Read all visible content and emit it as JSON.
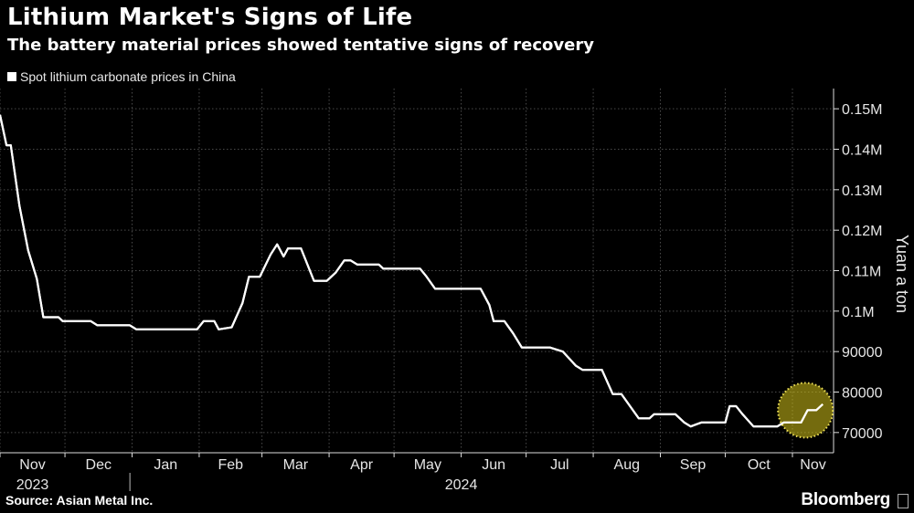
{
  "title": "Lithium Market's Signs of Life",
  "subtitle": "The battery material prices showed tentative signs of recovery",
  "source": "Source: Asian Metal Inc.",
  "brand": "Bloomberg",
  "colors": {
    "background": "#000000",
    "line": "#ffffff",
    "grid": "#4a4a4a",
    "highlight": "#d4c21a"
  },
  "chart_data": {
    "type": "line",
    "legend": "Spot lithium carbonate prices in China",
    "ylabel": "Yuan a ton",
    "ylim": [
      65000,
      155000
    ],
    "y_ticks": [
      {
        "value": 70000,
        "label": "70000"
      },
      {
        "value": 80000,
        "label": "80000"
      },
      {
        "value": 90000,
        "label": "90000"
      },
      {
        "value": 100000,
        "label": "0.1M"
      },
      {
        "value": 110000,
        "label": "0.11M"
      },
      {
        "value": 120000,
        "label": "0.12M"
      },
      {
        "value": 130000,
        "label": "0.13M"
      },
      {
        "value": 140000,
        "label": "0.14M"
      },
      {
        "value": 150000,
        "label": "0.15M"
      }
    ],
    "xlim": [
      "2023-11-01",
      "2024-11-20"
    ],
    "x_ticks": [
      {
        "date": "2023-11-01",
        "label": "Nov"
      },
      {
        "date": "2023-12-01",
        "label": "Dec"
      },
      {
        "date": "2024-01-01",
        "label": "Jan"
      },
      {
        "date": "2024-02-01",
        "label": "Feb"
      },
      {
        "date": "2024-03-01",
        "label": "Mar"
      },
      {
        "date": "2024-04-01",
        "label": "Apr"
      },
      {
        "date": "2024-05-01",
        "label": "May"
      },
      {
        "date": "2024-06-01",
        "label": "Jun"
      },
      {
        "date": "2024-07-01",
        "label": "Jul"
      },
      {
        "date": "2024-08-01",
        "label": "Aug"
      },
      {
        "date": "2024-09-01",
        "label": "Sep"
      },
      {
        "date": "2024-10-01",
        "label": "Oct"
      },
      {
        "date": "2024-11-01",
        "label": "Nov"
      }
    ],
    "year_labels": [
      {
        "date": "2023-11-16",
        "label": "2023"
      },
      {
        "date": "2024-06-01",
        "label": "2024"
      }
    ],
    "year_divider_date": "2023-12-31",
    "grid": true,
    "series": [
      {
        "name": "Spot lithium carbonate prices in China",
        "points": [
          [
            "2023-11-01",
            148500
          ],
          [
            "2023-11-04",
            141000
          ],
          [
            "2023-11-06",
            141000
          ],
          [
            "2023-11-10",
            126000
          ],
          [
            "2023-11-14",
            115000
          ],
          [
            "2023-11-18",
            108000
          ],
          [
            "2023-11-21",
            98500
          ],
          [
            "2023-11-28",
            98500
          ],
          [
            "2023-11-30",
            97500
          ],
          [
            "2023-12-13",
            97500
          ],
          [
            "2023-12-16",
            96500
          ],
          [
            "2023-12-31",
            96500
          ],
          [
            "2024-01-03",
            95500
          ],
          [
            "2024-01-15",
            95500
          ],
          [
            "2024-01-31",
            95500
          ],
          [
            "2024-02-03",
            97500
          ],
          [
            "2024-02-08",
            97500
          ],
          [
            "2024-02-10",
            95500
          ],
          [
            "2024-02-16",
            96000
          ],
          [
            "2024-02-21",
            102000
          ],
          [
            "2024-02-24",
            108500
          ],
          [
            "2024-02-29",
            108500
          ],
          [
            "2024-03-05",
            114000
          ],
          [
            "2024-03-08",
            116500
          ],
          [
            "2024-03-11",
            113500
          ],
          [
            "2024-03-13",
            115500
          ],
          [
            "2024-03-19",
            115500
          ],
          [
            "2024-03-25",
            107500
          ],
          [
            "2024-03-31",
            107500
          ],
          [
            "2024-04-04",
            109500
          ],
          [
            "2024-04-08",
            112500
          ],
          [
            "2024-04-11",
            112500
          ],
          [
            "2024-04-14",
            111500
          ],
          [
            "2024-04-24",
            111500
          ],
          [
            "2024-04-26",
            110500
          ],
          [
            "2024-05-13",
            110500
          ],
          [
            "2024-05-16",
            108500
          ],
          [
            "2024-05-20",
            105500
          ],
          [
            "2024-05-31",
            105500
          ],
          [
            "2024-06-10",
            105500
          ],
          [
            "2024-06-14",
            101500
          ],
          [
            "2024-06-16",
            97500
          ],
          [
            "2024-06-21",
            97500
          ],
          [
            "2024-06-25",
            94500
          ],
          [
            "2024-06-29",
            91000
          ],
          [
            "2024-07-12",
            91000
          ],
          [
            "2024-07-18",
            90000
          ],
          [
            "2024-07-24",
            86500
          ],
          [
            "2024-07-27",
            85500
          ],
          [
            "2024-08-05",
            85500
          ],
          [
            "2024-08-10",
            79500
          ],
          [
            "2024-08-14",
            79500
          ],
          [
            "2024-08-22",
            73500
          ],
          [
            "2024-08-27",
            73500
          ],
          [
            "2024-08-29",
            74500
          ],
          [
            "2024-09-08",
            74500
          ],
          [
            "2024-09-12",
            72500
          ],
          [
            "2024-09-15",
            71500
          ],
          [
            "2024-09-20",
            72500
          ],
          [
            "2024-10-01",
            72500
          ],
          [
            "2024-10-03",
            76500
          ],
          [
            "2024-10-06",
            76500
          ],
          [
            "2024-10-09",
            74500
          ],
          [
            "2024-10-14",
            71500
          ],
          [
            "2024-10-25",
            71500
          ],
          [
            "2024-10-28",
            72500
          ],
          [
            "2024-11-05",
            72500
          ],
          [
            "2024-11-08",
            75500
          ],
          [
            "2024-11-12",
            75500
          ],
          [
            "2024-11-15",
            77000
          ]
        ]
      }
    ],
    "annotations": [
      {
        "type": "highlight-circle",
        "center_date": "2024-11-07",
        "center_value": 75500
      }
    ]
  }
}
